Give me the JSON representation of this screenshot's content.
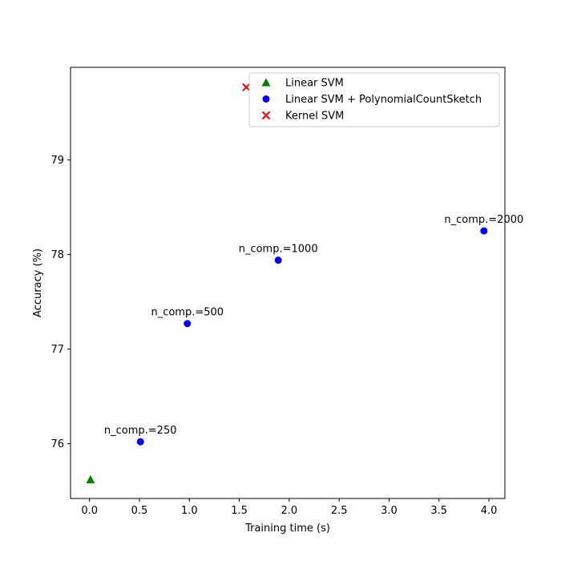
{
  "chart_data": {
    "type": "scatter",
    "xlabel": "Training time (s)",
    "ylabel": "Accuracy (%)",
    "xlim": [
      -0.19,
      4.16
    ],
    "ylim": [
      75.42,
      79.98
    ],
    "xticks": [
      "0.0",
      "0.5",
      "1.0",
      "1.5",
      "2.0",
      "2.5",
      "3.0",
      "3.5",
      "4.0"
    ],
    "yticks": [
      "76",
      "77",
      "78",
      "79"
    ],
    "grid": false,
    "legend_position": "top-right",
    "series": [
      {
        "name": "Linear SVM",
        "marker": "triangle",
        "color": "#008000",
        "points": [
          {
            "x": 0.01,
            "y": 75.62
          }
        ]
      },
      {
        "name": "Linear SVM + PolynomialCountSketch",
        "marker": "circle",
        "color": "#0000ff",
        "points": [
          {
            "x": 0.51,
            "y": 76.02,
            "label": "n_comp.=250"
          },
          {
            "x": 0.98,
            "y": 77.27,
            "label": "n_comp.=500"
          },
          {
            "x": 1.89,
            "y": 77.94,
            "label": "n_comp.=1000"
          },
          {
            "x": 3.95,
            "y": 78.25,
            "label": "n_comp.=2000"
          }
        ]
      },
      {
        "name": "Kernel SVM",
        "marker": "x",
        "color": "#ff0000",
        "points": [
          {
            "x": 1.57,
            "y": 79.77
          }
        ]
      }
    ]
  }
}
